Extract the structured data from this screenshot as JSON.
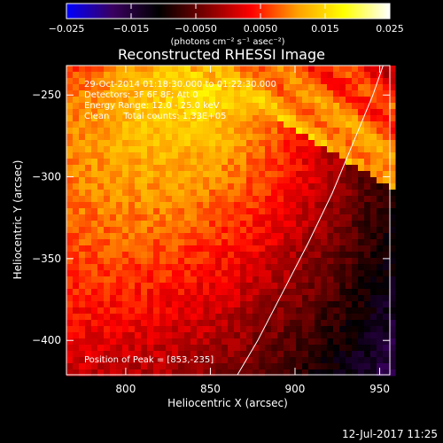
{
  "chart_data": {
    "type": "heatmap",
    "title": "Reconstructed RHESSI Image",
    "xlabel": "Heliocentric X (arcsec)",
    "ylabel": "Heliocentric Y (arcsec)",
    "xlim": [
      765,
      956
    ],
    "ylim": [
      -421,
      -232
    ],
    "x_ticks": [
      800,
      850,
      900,
      950
    ],
    "x_tick_labels": [
      "800",
      "850",
      "900",
      "950"
    ],
    "y_ticks": [
      -250,
      -300,
      -350,
      -400
    ],
    "y_tick_labels": [
      "−250",
      "−300",
      "−350",
      "−400"
    ],
    "colorbar": {
      "range": [
        -0.025,
        0.025
      ],
      "ticks": [
        -0.025,
        -0.015,
        -0.005,
        0.005,
        0.015,
        0.025
      ],
      "tick_labels": [
        "−0.025",
        "−0.015",
        "−0.0050",
        "0.0050",
        "0.015",
        "0.025"
      ],
      "unit_label": "(photons cm⁻² s⁻¹ asec⁻²)",
      "colormap_stops": [
        "#0000ff",
        "#3a0060",
        "#000000",
        "#7a0000",
        "#ff0000",
        "#ffa000",
        "#ffff00",
        "#ffffff"
      ]
    },
    "annotations": [
      "29-Oct-2014 01:18:30.000 to 01:22:30.000",
      "Detectors: 3F 6F 8F; Att 0",
      "Energy Range: 12.0 - 25.0 keV",
      "Clean     Total counts: 1.33E+05"
    ],
    "peak_annotation": "Position of Peak = [853,-235]",
    "peak": [
      853,
      -235
    ],
    "limb_curve": [
      [
        866,
        -421
      ],
      [
        878,
        -400
      ],
      [
        893,
        -370
      ],
      [
        908,
        -340
      ],
      [
        922,
        -310
      ],
      [
        934,
        -280
      ],
      [
        946,
        -250
      ],
      [
        952,
        -232
      ]
    ]
  },
  "footer": {
    "timestamp": "12-Jul-2017 11:25"
  }
}
